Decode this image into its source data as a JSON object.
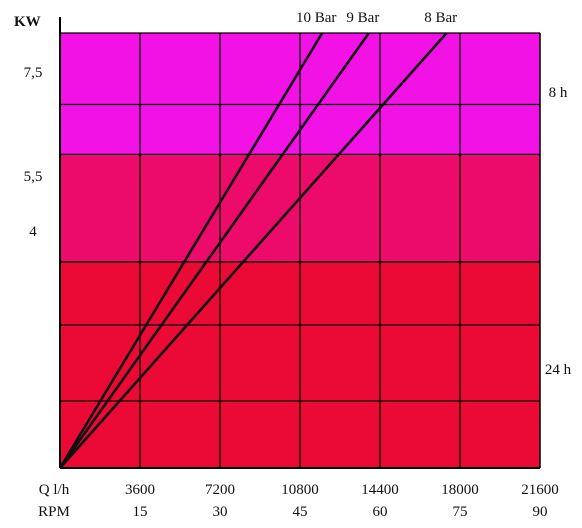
{
  "chart_data": {
    "type": "line",
    "title": "",
    "ylabel": "KW",
    "xlabel_rows": [
      "Q l/h",
      "RPM"
    ],
    "x_ticks_q": [
      "3600",
      "7200",
      "10800",
      "14400",
      "18000",
      "21600"
    ],
    "x_ticks_rpm": [
      "15",
      "30",
      "45",
      "60",
      "75",
      "90"
    ],
    "y_ticks": [
      "7,5",
      "5,5",
      "4"
    ],
    "xlim": [
      0,
      21600
    ],
    "ylim": [
      0,
      9.5
    ],
    "bands": [
      {
        "from": 0,
        "to": 4.5,
        "color": "#ea0a35",
        "label": "24 h",
        "label_y": 2.05
      },
      {
        "from": 4.5,
        "to": 6.85,
        "color": "#ec0b6a",
        "label": "",
        "label_y": null
      },
      {
        "from": 6.85,
        "to": 9.5,
        "color": "#f312e6",
        "label": "8 h",
        "label_y": 8.1
      }
    ],
    "series": [
      {
        "name": "10 Bar",
        "x": [
          0,
          11800
        ],
        "y": [
          0,
          9.5
        ]
      },
      {
        "name": "9 Bar",
        "x": [
          0,
          13900
        ],
        "y": [
          0,
          9.5
        ]
      },
      {
        "name": "8 Bar",
        "x": [
          0,
          17400
        ],
        "y": [
          0,
          9.5
        ]
      }
    ],
    "grid": true
  }
}
